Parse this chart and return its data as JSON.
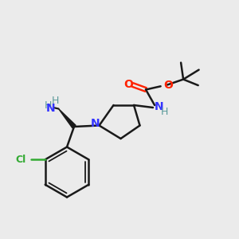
{
  "background_color": "#ebebeb",
  "bond_color": "#1a1a1a",
  "n_color": "#3333ff",
  "o_color": "#ff2200",
  "cl_color": "#33aa33",
  "h_color": "#5a9a9a",
  "figsize": [
    3.0,
    3.0
  ],
  "dpi": 100,
  "xlim": [
    0,
    10
  ],
  "ylim": [
    0,
    10
  ]
}
